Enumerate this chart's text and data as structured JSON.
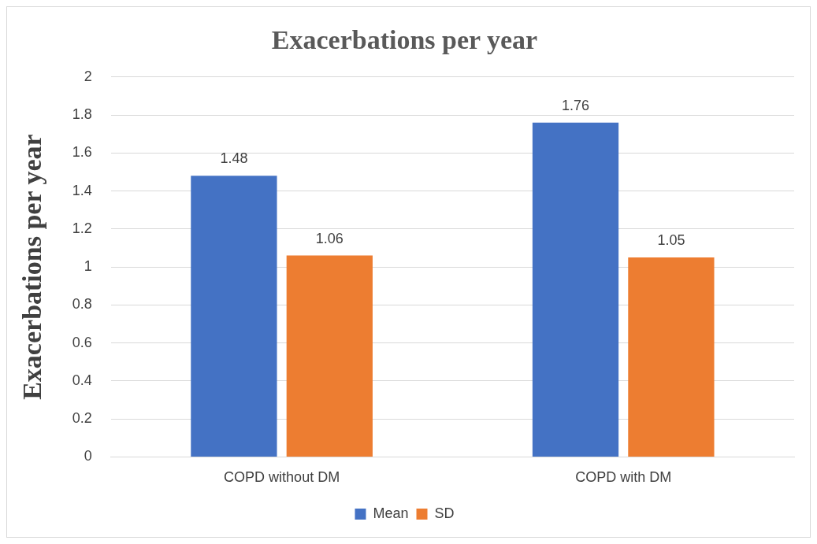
{
  "chart_data": {
    "type": "bar",
    "title": "Exacerbations per year",
    "ylabel": "Exacerbations per year",
    "categories": [
      "COPD without DM",
      "COPD with DM"
    ],
    "series": [
      {
        "name": "Mean",
        "color": "#4472c4",
        "values": [
          1.48,
          1.76
        ]
      },
      {
        "name": "SD",
        "color": "#ed7d31",
        "values": [
          1.06,
          1.05
        ]
      }
    ],
    "ylim": [
      0,
      2
    ],
    "yticks": [
      0,
      0.2,
      0.4,
      0.6,
      0.8,
      1,
      1.2,
      1.4,
      1.6,
      1.8,
      2
    ],
    "grid": "y",
    "legend": "bottom",
    "data_labels": true
  }
}
